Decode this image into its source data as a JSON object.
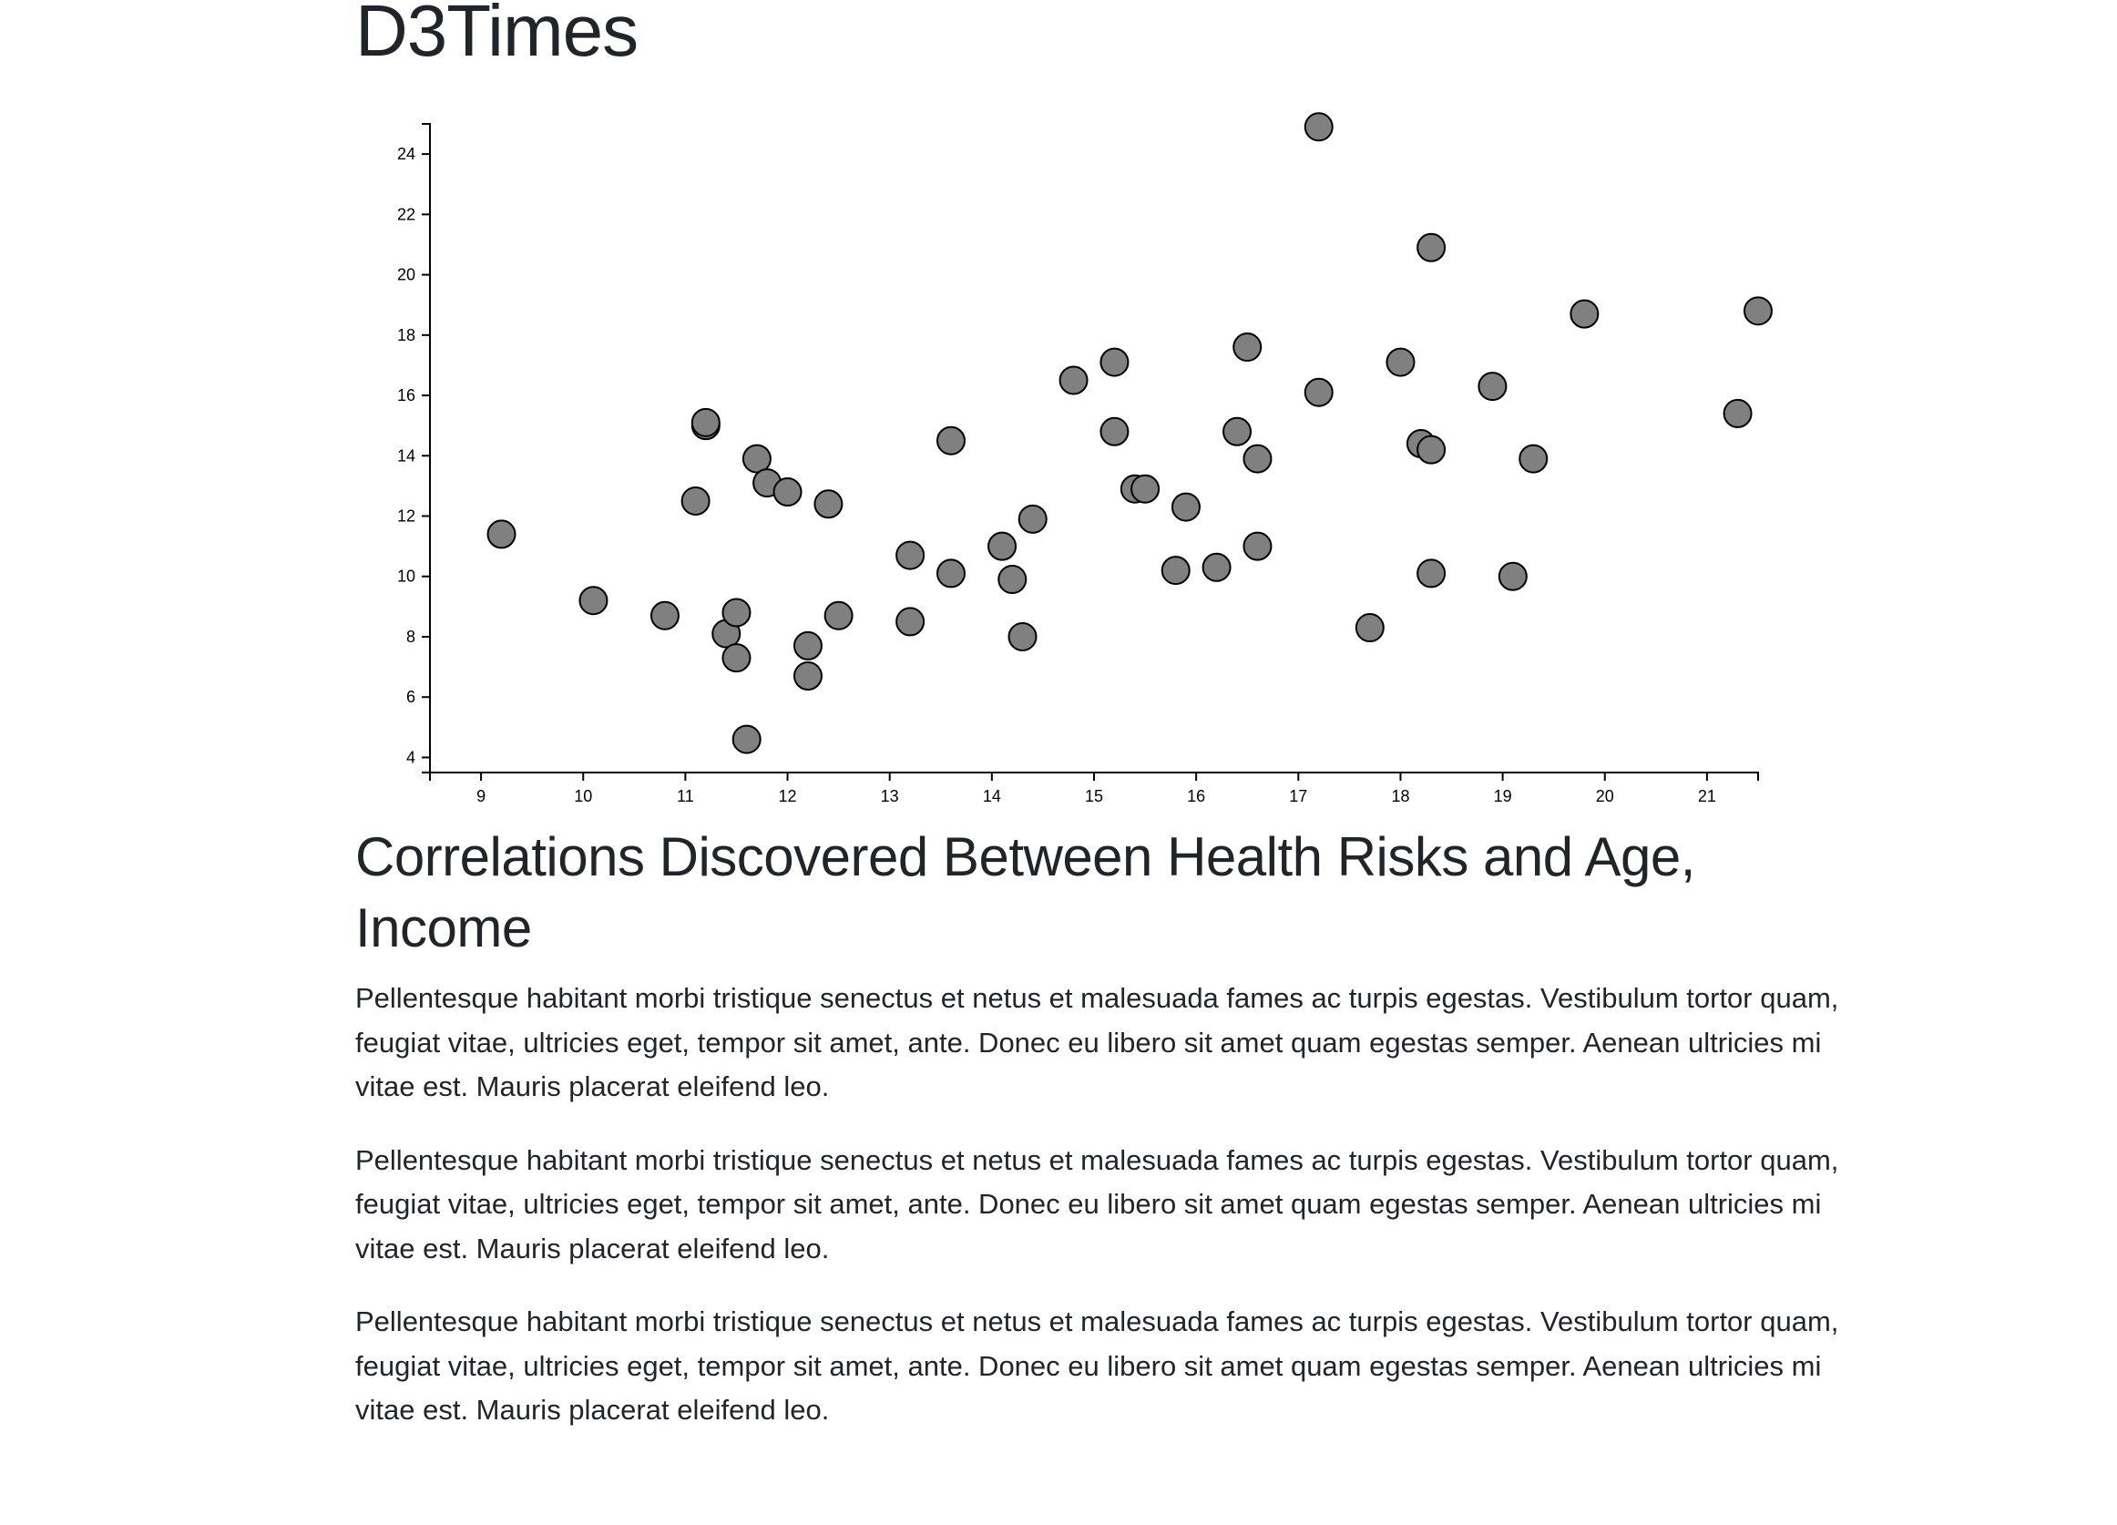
{
  "header": {
    "site_title": "D3Times"
  },
  "chart_data": {
    "type": "scatter",
    "title": "",
    "xlabel": "",
    "ylabel": "",
    "xlim": [
      8.5,
      21.5
    ],
    "ylim": [
      3.5,
      25
    ],
    "x_ticks": [
      9,
      10,
      11,
      12,
      13,
      14,
      15,
      16,
      17,
      18,
      19,
      20,
      21
    ],
    "y_ticks": [
      4,
      6,
      8,
      10,
      12,
      14,
      16,
      18,
      20,
      22,
      24
    ],
    "grid": false,
    "points": [
      {
        "x": 9.2,
        "y": 11.4
      },
      {
        "x": 10.1,
        "y": 9.2
      },
      {
        "x": 10.8,
        "y": 8.7
      },
      {
        "x": 11.1,
        "y": 12.5
      },
      {
        "x": 11.2,
        "y": 15.0
      },
      {
        "x": 11.2,
        "y": 15.1
      },
      {
        "x": 11.4,
        "y": 8.1
      },
      {
        "x": 11.5,
        "y": 8.8
      },
      {
        "x": 11.5,
        "y": 7.3
      },
      {
        "x": 11.6,
        "y": 4.6
      },
      {
        "x": 11.7,
        "y": 13.9
      },
      {
        "x": 11.8,
        "y": 13.1
      },
      {
        "x": 12.0,
        "y": 12.8
      },
      {
        "x": 12.2,
        "y": 7.7
      },
      {
        "x": 12.2,
        "y": 6.7
      },
      {
        "x": 12.4,
        "y": 12.4
      },
      {
        "x": 12.5,
        "y": 8.7
      },
      {
        "x": 13.2,
        "y": 10.7
      },
      {
        "x": 13.2,
        "y": 8.5
      },
      {
        "x": 13.6,
        "y": 14.5
      },
      {
        "x": 13.6,
        "y": 10.1
      },
      {
        "x": 14.1,
        "y": 11.0
      },
      {
        "x": 14.2,
        "y": 9.9
      },
      {
        "x": 14.3,
        "y": 8.0
      },
      {
        "x": 14.4,
        "y": 11.9
      },
      {
        "x": 14.8,
        "y": 16.5
      },
      {
        "x": 15.2,
        "y": 17.1
      },
      {
        "x": 15.2,
        "y": 14.8
      },
      {
        "x": 15.4,
        "y": 12.9
      },
      {
        "x": 15.5,
        "y": 12.9
      },
      {
        "x": 15.8,
        "y": 10.2
      },
      {
        "x": 15.9,
        "y": 12.3
      },
      {
        "x": 16.2,
        "y": 10.3
      },
      {
        "x": 16.4,
        "y": 14.8
      },
      {
        "x": 16.5,
        "y": 17.6
      },
      {
        "x": 16.6,
        "y": 13.9
      },
      {
        "x": 16.6,
        "y": 11.0
      },
      {
        "x": 17.2,
        "y": 24.9
      },
      {
        "x": 17.2,
        "y": 16.1
      },
      {
        "x": 17.7,
        "y": 8.3
      },
      {
        "x": 18.0,
        "y": 17.1
      },
      {
        "x": 18.2,
        "y": 14.4
      },
      {
        "x": 18.3,
        "y": 20.9
      },
      {
        "x": 18.3,
        "y": 14.2
      },
      {
        "x": 18.3,
        "y": 10.1
      },
      {
        "x": 18.9,
        "y": 16.3
      },
      {
        "x": 19.1,
        "y": 10.0
      },
      {
        "x": 19.3,
        "y": 13.9
      },
      {
        "x": 19.8,
        "y": 18.7
      },
      {
        "x": 21.3,
        "y": 15.4
      },
      {
        "x": 21.5,
        "y": 18.8
      }
    ],
    "point_color": "#808080",
    "point_stroke": "#000000"
  },
  "article": {
    "title": "Correlations Discovered Between Health Risks and Age, Income",
    "paragraphs": [
      "Pellentesque habitant morbi tristique senectus et netus et malesuada fames ac turpis egestas. Vestibulum tortor quam, feugiat vitae, ultricies eget, tempor sit amet, ante. Donec eu libero sit amet quam egestas semper. Aenean ultricies mi vitae est. Mauris placerat eleifend leo.",
      "Pellentesque habitant morbi tristique senectus et netus et malesuada fames ac turpis egestas. Vestibulum tortor quam, feugiat vitae, ultricies eget, tempor sit amet, ante. Donec eu libero sit amet quam egestas semper. Aenean ultricies mi vitae est. Mauris placerat eleifend leo.",
      "Pellentesque habitant morbi tristique senectus et netus et malesuada fames ac turpis egestas. Vestibulum tortor quam, feugiat vitae, ultricies eget, tempor sit amet, ante. Donec eu libero sit amet quam egestas semper. Aenean ultricies mi vitae est. Mauris placerat eleifend leo."
    ]
  }
}
